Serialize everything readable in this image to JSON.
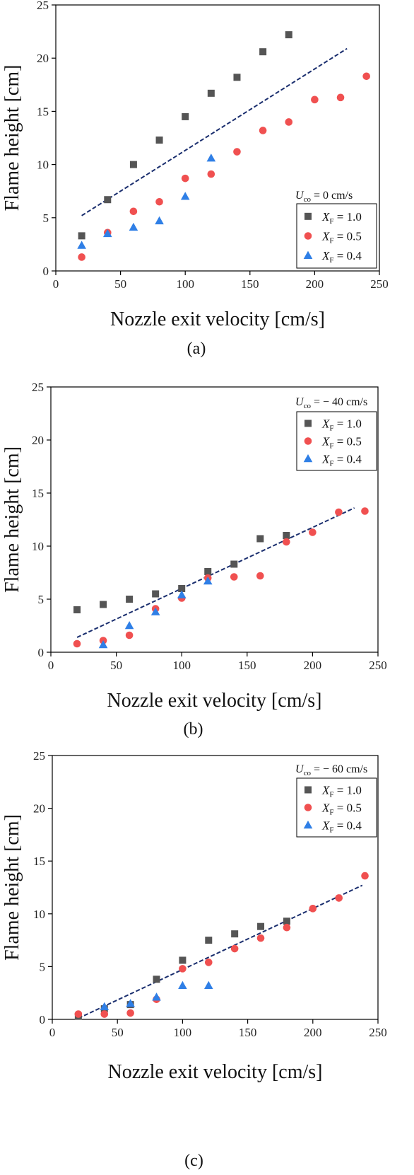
{
  "figure": {
    "colors": {
      "X_F_1_0": "#555555",
      "X_F_0_5": "#f05050",
      "X_F_0_4": "#2f7fe6",
      "fit_line": "#1a2e6e",
      "axis": "#000000"
    },
    "markers": {
      "X_F_1_0": "square",
      "X_F_0_5": "circle",
      "X_F_0_4": "triangle"
    }
  },
  "chart_data": [
    {
      "type": "scatter",
      "panel_label": "(a)",
      "xlabel": "Nozzle exit velocity [cm/s]",
      "ylabel": "Flame height [cm]",
      "xlim": [
        0,
        250
      ],
      "ylim": [
        0,
        25
      ],
      "xticks": [
        0,
        50,
        100,
        150,
        200,
        250
      ],
      "yticks": [
        0,
        5,
        10,
        15,
        20,
        25
      ],
      "condition": {
        "var": "U",
        "sub": "co",
        "text": " = 0 cm/s"
      },
      "legend_placement": "bottom-right",
      "series": [
        {
          "name": "X_F = 1.0",
          "label_var": "X",
          "label_sub": "F",
          "label_rest": " = 1.0",
          "marker": "square",
          "color": "#555555",
          "points": [
            [
              20,
              3.3
            ],
            [
              40,
              6.7
            ],
            [
              60,
              10.0
            ],
            [
              80,
              12.3
            ],
            [
              100,
              14.5
            ],
            [
              120,
              16.7
            ],
            [
              140,
              18.2
            ],
            [
              160,
              20.6
            ],
            [
              180,
              22.2
            ]
          ]
        },
        {
          "name": "X_F = 0.5",
          "label_var": "X",
          "label_sub": "F",
          "label_rest": " = 0.5",
          "marker": "circle",
          "color": "#f05050",
          "points": [
            [
              20,
              1.3
            ],
            [
              40,
              3.6
            ],
            [
              60,
              5.6
            ],
            [
              80,
              6.5
            ],
            [
              100,
              8.7
            ],
            [
              120,
              9.1
            ],
            [
              140,
              11.2
            ],
            [
              160,
              13.2
            ],
            [
              180,
              14.0
            ],
            [
              200,
              16.1
            ],
            [
              220,
              16.3
            ],
            [
              240,
              18.3
            ]
          ]
        },
        {
          "name": "X_F = 0.4",
          "label_var": "X",
          "label_sub": "F",
          "label_rest": " = 0.4",
          "marker": "triangle",
          "color": "#2f7fe6",
          "points": [
            [
              20,
              2.4
            ],
            [
              40,
              3.5
            ],
            [
              60,
              4.1
            ],
            [
              80,
              4.7
            ],
            [
              100,
              7.0
            ],
            [
              120,
              10.6
            ]
          ]
        }
      ],
      "fit_line": {
        "style": "dashed",
        "color": "#1a2e6e",
        "x": [
          20,
          225
        ],
        "y": [
          5.2,
          20.9
        ]
      }
    },
    {
      "type": "scatter",
      "panel_label": "(b)",
      "xlabel": "Nozzle exit velocity [cm/s]",
      "ylabel": "Flame height [cm]",
      "xlim": [
        0,
        250
      ],
      "ylim": [
        0,
        25
      ],
      "xticks": [
        0,
        50,
        100,
        150,
        200,
        250
      ],
      "yticks": [
        0,
        5,
        10,
        15,
        20,
        25
      ],
      "condition": {
        "var": "U",
        "sub": "co",
        "text": " = − 40 cm/s"
      },
      "legend_placement": "top-right",
      "series": [
        {
          "name": "X_F = 1.0",
          "label_var": "X",
          "label_sub": "F",
          "label_rest": " = 1.0",
          "marker": "square",
          "color": "#555555",
          "points": [
            [
              20,
              4.0
            ],
            [
              40,
              4.5
            ],
            [
              60,
              5.0
            ],
            [
              80,
              5.5
            ],
            [
              100,
              6.0
            ],
            [
              120,
              7.6
            ],
            [
              140,
              8.3
            ],
            [
              160,
              10.7
            ],
            [
              180,
              11.0
            ]
          ]
        },
        {
          "name": "X_F = 0.5",
          "label_var": "X",
          "label_sub": "F",
          "label_rest": " = 0.5",
          "marker": "circle",
          "color": "#f05050",
          "points": [
            [
              20,
              0.8
            ],
            [
              40,
              1.1
            ],
            [
              60,
              1.6
            ],
            [
              80,
              4.1
            ],
            [
              100,
              5.1
            ],
            [
              120,
              7.0
            ],
            [
              140,
              7.1
            ],
            [
              160,
              7.2
            ],
            [
              180,
              10.4
            ],
            [
              200,
              11.3
            ],
            [
              220,
              13.2
            ],
            [
              240,
              13.3
            ]
          ]
        },
        {
          "name": "X_F = 0.4",
          "label_var": "X",
          "label_sub": "F",
          "label_rest": " = 0.4",
          "marker": "triangle",
          "color": "#2f7fe6",
          "points": [
            [
              40,
              0.7
            ],
            [
              60,
              2.5
            ],
            [
              80,
              3.8
            ],
            [
              100,
              5.4
            ],
            [
              120,
              6.7
            ]
          ]
        }
      ],
      "fit_line": {
        "style": "dashed",
        "color": "#1a2e6e",
        "x": [
          20,
          232
        ],
        "y": [
          1.4,
          13.6
        ]
      }
    },
    {
      "type": "scatter",
      "panel_label": "(c)",
      "xlabel": "Nozzle exit velocity [cm/s]",
      "ylabel": "Flame height [cm]",
      "xlim": [
        0,
        250
      ],
      "ylim": [
        0,
        25
      ],
      "xticks": [
        0,
        50,
        100,
        150,
        200,
        250
      ],
      "yticks": [
        0,
        5,
        10,
        15,
        20,
        25
      ],
      "condition": {
        "var": "U",
        "sub": "co",
        "text": " = − 60 cm/s"
      },
      "legend_placement": "top-right",
      "series": [
        {
          "name": "X_F = 1.0",
          "label_var": "X",
          "label_sub": "F",
          "label_rest": " = 1.0",
          "marker": "square",
          "color": "#555555",
          "points": [
            [
              20,
              0.3
            ],
            [
              40,
              1.0
            ],
            [
              60,
              1.4
            ],
            [
              80,
              3.8
            ],
            [
              100,
              5.6
            ],
            [
              120,
              7.5
            ],
            [
              140,
              8.1
            ],
            [
              160,
              8.8
            ],
            [
              180,
              9.3
            ]
          ]
        },
        {
          "name": "X_F = 0.5",
          "label_var": "X",
          "label_sub": "F",
          "label_rest": " = 0.5",
          "marker": "circle",
          "color": "#f05050",
          "points": [
            [
              20,
              0.5
            ],
            [
              40,
              0.5
            ],
            [
              60,
              0.6
            ],
            [
              80,
              1.9
            ],
            [
              100,
              4.8
            ],
            [
              120,
              5.4
            ],
            [
              140,
              6.7
            ],
            [
              160,
              7.7
            ],
            [
              180,
              8.7
            ],
            [
              200,
              10.5
            ],
            [
              220,
              11.5
            ],
            [
              240,
              13.6
            ]
          ]
        },
        {
          "name": "X_F = 0.4",
          "label_var": "X",
          "label_sub": "F",
          "label_rest": " = 0.4",
          "marker": "triangle",
          "color": "#2f7fe6",
          "points": [
            [
              40,
              1.2
            ],
            [
              60,
              1.5
            ],
            [
              80,
              2.1
            ],
            [
              100,
              3.2
            ],
            [
              120,
              3.2
            ]
          ]
        }
      ],
      "fit_line": {
        "style": "dashed",
        "color": "#1a2e6e",
        "x": [
          20,
          238
        ],
        "y": [
          0.1,
          12.7
        ]
      }
    }
  ]
}
